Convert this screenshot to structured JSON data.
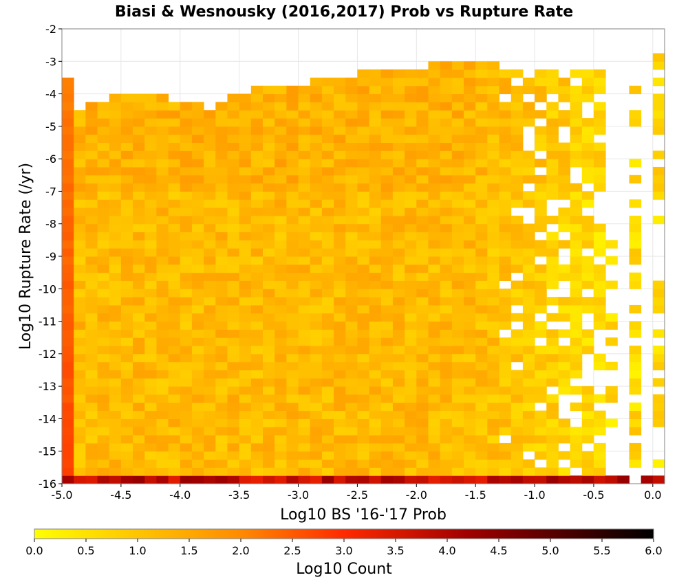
{
  "chart_data": {
    "type": "heatmap",
    "title": "Biasi & Wesnousky (2016,2017) Prob vs Rupture Rate",
    "xlabel": "Log10 BS '16-'17 Prob",
    "ylabel": "Log10 Rupture Rate (/yr)",
    "xlim": [
      -5.0,
      0.1
    ],
    "ylim": [
      -16,
      -2
    ],
    "xticks": [
      "-5.0",
      "-4.5",
      "-4.0",
      "-3.5",
      "-3.0",
      "-2.5",
      "-2.0",
      "-1.5",
      "-1.0",
      "-0.5",
      "0.0"
    ],
    "yticks": [
      "-2",
      "-3",
      "-4",
      "-5",
      "-6",
      "-7",
      "-8",
      "-9",
      "-10",
      "-11",
      "-12",
      "-13",
      "-14",
      "-15",
      "-16"
    ],
    "grid": true,
    "colorbar": {
      "label": "Log10 Count",
      "range": [
        0.0,
        6.0
      ],
      "ticks": [
        "0.0",
        "0.5",
        "1.0",
        "1.5",
        "2.0",
        "2.5",
        "3.0",
        "3.5",
        "4.0",
        "4.5",
        "5.0",
        "5.5",
        "6.0"
      ],
      "colors": [
        "#ffff00",
        "#ff9900",
        "#ff0000",
        "#000000"
      ]
    },
    "bin_size": 0.1,
    "typical_log_count": 1.2,
    "left_edge_column": {
      "x": -4.95,
      "log_count_range": [
        2.0,
        2.7
      ]
    },
    "bottom_row": {
      "y": -15.95,
      "log_count_range": [
        3.3,
        4.3
      ]
    },
    "top_boundary": [
      {
        "x": -4.95,
        "y": -3.6
      },
      {
        "x": -4.85,
        "y": -4.4
      },
      {
        "x": -4.45,
        "y": -3.9
      },
      {
        "x": -3.75,
        "y": -4.4
      },
      {
        "x": -3.45,
        "y": -3.9
      },
      {
        "x": -2.85,
        "y": -3.6
      },
      {
        "x": -2.35,
        "y": -3.3
      },
      {
        "x": -1.65,
        "y": -3.0
      },
      {
        "x": -1.25,
        "y": -3.0
      },
      {
        "x": -0.95,
        "y": -3.3
      },
      {
        "x": -0.55,
        "y": -3.3
      }
    ],
    "right_sparse_columns": [
      {
        "x": -0.35,
        "y_range": [
          -8.3,
          -14.4
        ]
      },
      {
        "x": -0.15,
        "y_range": [
          -3.3,
          -15.9
        ]
      },
      {
        "x": 0.05,
        "y_range": [
          -2.7,
          -15.9
        ]
      }
    ]
  }
}
